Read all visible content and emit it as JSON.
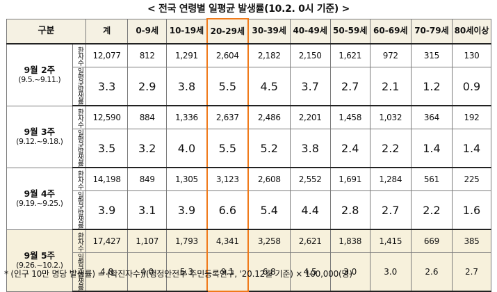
{
  "title": "< 전국 연령별 일평균 발생률(10.2. 0시 기준) >",
  "header": {
    "category": "구분",
    "columns": [
      "계",
      "0-9세",
      "10-19세",
      "20-29세",
      "30-39세",
      "40-49세",
      "50-59세",
      "60-69세",
      "70-79세",
      "80세이상"
    ]
  },
  "sub_labels": {
    "count": "환자수",
    "rate": "일평균발생률"
  },
  "highlight_column": "20-29세",
  "highlight_color": "#f07a1a",
  "last_week_fill": "#f7f1dc",
  "weeks": [
    {
      "label": "9월 2주",
      "dates": "(9.5.~9.11.)",
      "count": [
        "12,077",
        "812",
        "1,291",
        "2,604",
        "2,182",
        "2,150",
        "1,621",
        "972",
        "315",
        "130"
      ],
      "rate": [
        "3.3",
        "2.9",
        "3.8",
        "5.5",
        "4.5",
        "3.7",
        "2.7",
        "2.1",
        "1.2",
        "0.9"
      ]
    },
    {
      "label": "9월 3주",
      "dates": "(9.12.~9.18.)",
      "count": [
        "12,590",
        "884",
        "1,336",
        "2,637",
        "2,486",
        "2,201",
        "1,458",
        "1,032",
        "364",
        "192"
      ],
      "rate": [
        "3.5",
        "3.2",
        "4.0",
        "5.5",
        "5.2",
        "3.8",
        "2.4",
        "2.2",
        "1.4",
        "1.4"
      ]
    },
    {
      "label": "9월 4주",
      "dates": "(9.19.~9.25.)",
      "count": [
        "14,198",
        "849",
        "1,305",
        "3,123",
        "2,608",
        "2,552",
        "1,691",
        "1,284",
        "561",
        "225"
      ],
      "rate": [
        "3.9",
        "3.1",
        "3.9",
        "6.6",
        "5.4",
        "4.4",
        "2.8",
        "2.7",
        "2.2",
        "1.6"
      ]
    },
    {
      "label": "9월 5주",
      "dates": "(9.26.~10.2.)",
      "count": [
        "17,427",
        "1,107",
        "1,793",
        "4,341",
        "3,258",
        "2,621",
        "1,838",
        "1,415",
        "669",
        "385"
      ],
      "rate": [
        "4.8",
        "4.0",
        "5.3",
        "9.1",
        "6.8",
        "4.5",
        "3.0",
        "3.0",
        "2.6",
        "2.7"
      ]
    }
  ],
  "footnote": "* (인구 10만 명당 발생률) = (확진자수)/(행정안전부 주민등록인구, '20.12월 기준) × 100,000(명)"
}
